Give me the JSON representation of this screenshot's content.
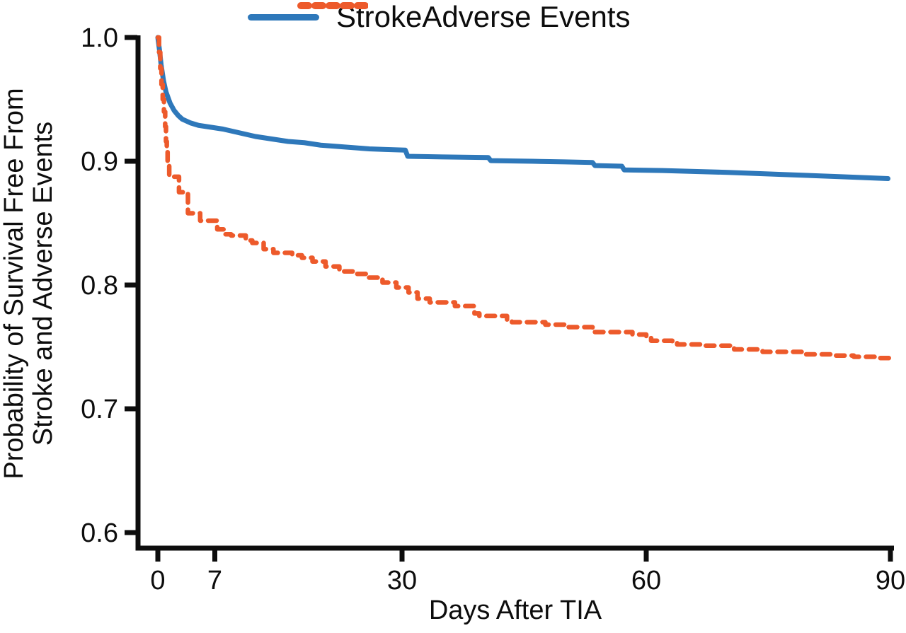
{
  "chart_data": {
    "type": "line",
    "subtype": "kaplan-meier-survival",
    "title": "",
    "xlabel": "Days After TIA",
    "ylabel_lines": [
      "Probability of Survival Free From",
      "Stroke and Adverse Events"
    ],
    "xlim": [
      0,
      90
    ],
    "ylim": [
      0.585,
      1.0
    ],
    "grid": false,
    "legend_position": "top",
    "axis_color": "#0d0d0d",
    "xticks": {
      "values": [
        0,
        7,
        30,
        60,
        90
      ],
      "labels": [
        "0",
        "7",
        "30",
        "60",
        "90"
      ]
    },
    "yticks": {
      "values": [
        1.0,
        0.9,
        0.8,
        0.7,
        0.6
      ],
      "labels": [
        "1.0",
        "0.9",
        "0.8",
        "0.7",
        "0.6"
      ]
    },
    "series": [
      {
        "name": "Stroke",
        "color": "#2e78ba",
        "line_style": "solid",
        "interpolation": "linear",
        "points": [
          [
            0,
            1.0
          ],
          [
            0.2,
            0.99
          ],
          [
            0.4,
            0.978
          ],
          [
            0.7,
            0.965
          ],
          [
            1,
            0.956
          ],
          [
            1.5,
            0.947
          ],
          [
            2,
            0.941
          ],
          [
            2.5,
            0.937
          ],
          [
            3,
            0.934
          ],
          [
            4,
            0.931
          ],
          [
            5,
            0.929
          ],
          [
            6,
            0.928
          ],
          [
            7,
            0.927
          ],
          [
            8,
            0.926
          ],
          [
            10,
            0.923
          ],
          [
            12,
            0.92
          ],
          [
            14,
            0.918
          ],
          [
            16,
            0.916
          ],
          [
            18,
            0.915
          ],
          [
            20,
            0.913
          ],
          [
            22,
            0.912
          ],
          [
            24,
            0.911
          ],
          [
            26,
            0.91
          ],
          [
            28,
            0.9095
          ],
          [
            30.4,
            0.909
          ],
          [
            30.7,
            0.904
          ],
          [
            35,
            0.9035
          ],
          [
            40.6,
            0.903
          ],
          [
            40.9,
            0.9005
          ],
          [
            46,
            0.9
          ],
          [
            50,
            0.8995
          ],
          [
            53.4,
            0.899
          ],
          [
            53.7,
            0.8965
          ],
          [
            57,
            0.896
          ],
          [
            57.3,
            0.893
          ],
          [
            62,
            0.8925
          ],
          [
            70,
            0.891
          ],
          [
            78,
            0.889
          ],
          [
            84,
            0.8875
          ],
          [
            89.7,
            0.886
          ]
        ]
      },
      {
        "name": "Adverse Events",
        "color": "#ed5a2b",
        "line_style": "dashed",
        "interpolation": "step-after",
        "points": [
          [
            0,
            1.0
          ],
          [
            0.15,
            0.988
          ],
          [
            0.3,
            0.975
          ],
          [
            0.45,
            0.962
          ],
          [
            0.6,
            0.95
          ],
          [
            0.75,
            0.94
          ],
          [
            0.9,
            0.928
          ],
          [
            1.0,
            0.916
          ],
          [
            1.1,
            0.908
          ],
          [
            1.2,
            0.9
          ],
          [
            1.4,
            0.8875
          ],
          [
            2.6,
            0.875
          ],
          [
            3.7,
            0.858
          ],
          [
            5.2,
            0.852
          ],
          [
            7.3,
            0.845
          ],
          [
            8.3,
            0.841
          ],
          [
            9,
            0.84
          ],
          [
            10.8,
            0.836
          ],
          [
            11.6,
            0.834
          ],
          [
            13,
            0.829
          ],
          [
            14.2,
            0.826
          ],
          [
            16.5,
            0.824
          ],
          [
            17.7,
            0.822
          ],
          [
            19,
            0.819
          ],
          [
            20.6,
            0.815
          ],
          [
            22.3,
            0.811
          ],
          [
            24.1,
            0.809
          ],
          [
            25.8,
            0.806
          ],
          [
            27.6,
            0.802
          ],
          [
            29.3,
            0.798
          ],
          [
            30.8,
            0.794
          ],
          [
            31.9,
            0.789
          ],
          [
            33.4,
            0.786
          ],
          [
            36.5,
            0.783
          ],
          [
            38.9,
            0.777
          ],
          [
            39.5,
            0.775
          ],
          [
            42.9,
            0.772
          ],
          [
            43.5,
            0.77
          ],
          [
            47.6,
            0.768
          ],
          [
            50,
            0.766
          ],
          [
            53.4,
            0.764
          ],
          [
            53.7,
            0.762
          ],
          [
            58.3,
            0.76
          ],
          [
            60,
            0.758
          ],
          [
            60.6,
            0.755
          ],
          [
            63.2,
            0.753
          ],
          [
            63.8,
            0.752
          ],
          [
            66.7,
            0.751
          ],
          [
            70.8,
            0.748
          ],
          [
            74.3,
            0.746
          ],
          [
            79.2,
            0.744
          ],
          [
            83,
            0.743
          ],
          [
            85.5,
            0.742
          ],
          [
            88.7,
            0.741
          ],
          [
            90,
            0.739
          ]
        ]
      }
    ]
  }
}
